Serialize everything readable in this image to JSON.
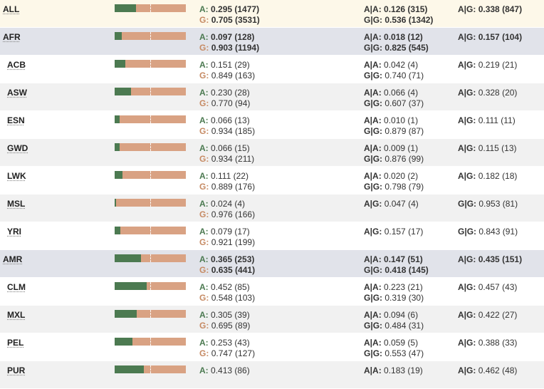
{
  "labels": {
    "A": "A",
    "G": "G",
    "AA": "A|A",
    "AG": "A|G",
    "GG": "G|G"
  },
  "colors": {
    "allele_A": "#4c7a51",
    "allele_G": "#d9a283"
  },
  "rows": [
    {
      "pop": "ALL",
      "kind": "all",
      "a_frac": 0.295,
      "a": "0.295 (1477)",
      "g": "0.705 (3531)",
      "g1l": "AA",
      "g1": "0.126 (315)",
      "g2l": "GG",
      "g2": "0.536 (1342)",
      "g3l": "AG",
      "g3": "0.338 (847)"
    },
    {
      "pop": "AFR",
      "kind": "super",
      "a_frac": 0.097,
      "a": "0.097 (128)",
      "g": "0.903 (1194)",
      "g1l": "AA",
      "g1": "0.018 (12)",
      "g2l": "GG",
      "g2": "0.825 (545)",
      "g3l": "AG",
      "g3": "0.157 (104)"
    },
    {
      "pop": "ACB",
      "kind": "sub",
      "a_frac": 0.151,
      "a": "0.151 (29)",
      "g": "0.849 (163)",
      "g1l": "AA",
      "g1": "0.042 (4)",
      "g2l": "GG",
      "g2": "0.740 (71)",
      "g3l": "AG",
      "g3": "0.219 (21)"
    },
    {
      "pop": "ASW",
      "kind": "sub",
      "a_frac": 0.23,
      "a": "0.230 (28)",
      "g": "0.770 (94)",
      "g1l": "AA",
      "g1": "0.066 (4)",
      "g2l": "GG",
      "g2": "0.607 (37)",
      "g3l": "AG",
      "g3": "0.328 (20)"
    },
    {
      "pop": "ESN",
      "kind": "sub",
      "a_frac": 0.066,
      "a": "0.066 (13)",
      "g": "0.934 (185)",
      "g1l": "AA",
      "g1": "0.010 (1)",
      "g2l": "GG",
      "g2": "0.879 (87)",
      "g3l": "AG",
      "g3": "0.111 (11)"
    },
    {
      "pop": "GWD",
      "kind": "sub",
      "a_frac": 0.066,
      "a": "0.066 (15)",
      "g": "0.934 (211)",
      "g1l": "AA",
      "g1": "0.009 (1)",
      "g2l": "GG",
      "g2": "0.876 (99)",
      "g3l": "AG",
      "g3": "0.115 (13)"
    },
    {
      "pop": "LWK",
      "kind": "sub",
      "a_frac": 0.111,
      "a": "0.111 (22)",
      "g": "0.889 (176)",
      "g1l": "AA",
      "g1": "0.020 (2)",
      "g2l": "GG",
      "g2": "0.798 (79)",
      "g3l": "AG",
      "g3": "0.182 (18)"
    },
    {
      "pop": "MSL",
      "kind": "sub",
      "a_frac": 0.024,
      "a": "0.024 (4)",
      "g": "0.976 (166)",
      "g1l": "AG",
      "g1": "0.047 (4)",
      "g2l": "",
      "g2": "",
      "g3l": "GG",
      "g3": "0.953 (81)"
    },
    {
      "pop": "YRI",
      "kind": "sub",
      "a_frac": 0.079,
      "a": "0.079 (17)",
      "g": "0.921 (199)",
      "g1l": "AG",
      "g1": "0.157 (17)",
      "g2l": "",
      "g2": "",
      "g3l": "GG",
      "g3": "0.843 (91)"
    },
    {
      "pop": "AMR",
      "kind": "super",
      "a_frac": 0.365,
      "a": "0.365 (253)",
      "g": "0.635 (441)",
      "g1l": "AA",
      "g1": "0.147 (51)",
      "g2l": "GG",
      "g2": "0.418 (145)",
      "g3l": "AG",
      "g3": "0.435 (151)"
    },
    {
      "pop": "CLM",
      "kind": "sub",
      "a_frac": 0.452,
      "a": "0.452 (85)",
      "g": "0.548 (103)",
      "g1l": "AA",
      "g1": "0.223 (21)",
      "g2l": "GG",
      "g2": "0.319 (30)",
      "g3l": "AG",
      "g3": "0.457 (43)"
    },
    {
      "pop": "MXL",
      "kind": "sub",
      "a_frac": 0.305,
      "a": "0.305 (39)",
      "g": "0.695 (89)",
      "g1l": "AA",
      "g1": "0.094 (6)",
      "g2l": "GG",
      "g2": "0.484 (31)",
      "g3l": "AG",
      "g3": "0.422 (27)"
    },
    {
      "pop": "PEL",
      "kind": "sub",
      "a_frac": 0.253,
      "a": "0.253 (43)",
      "g": "0.747 (127)",
      "g1l": "AA",
      "g1": "0.059 (5)",
      "g2l": "GG",
      "g2": "0.553 (47)",
      "g3l": "AG",
      "g3": "0.388 (33)"
    },
    {
      "pop": "PUR",
      "kind": "sub",
      "a_frac": 0.413,
      "a": "0.413 (86)",
      "g": "",
      "g1l": "AA",
      "g1": "0.183 (19)",
      "g2l": "",
      "g2": "",
      "g3l": "AG",
      "g3": "0.462 (48)"
    }
  ]
}
